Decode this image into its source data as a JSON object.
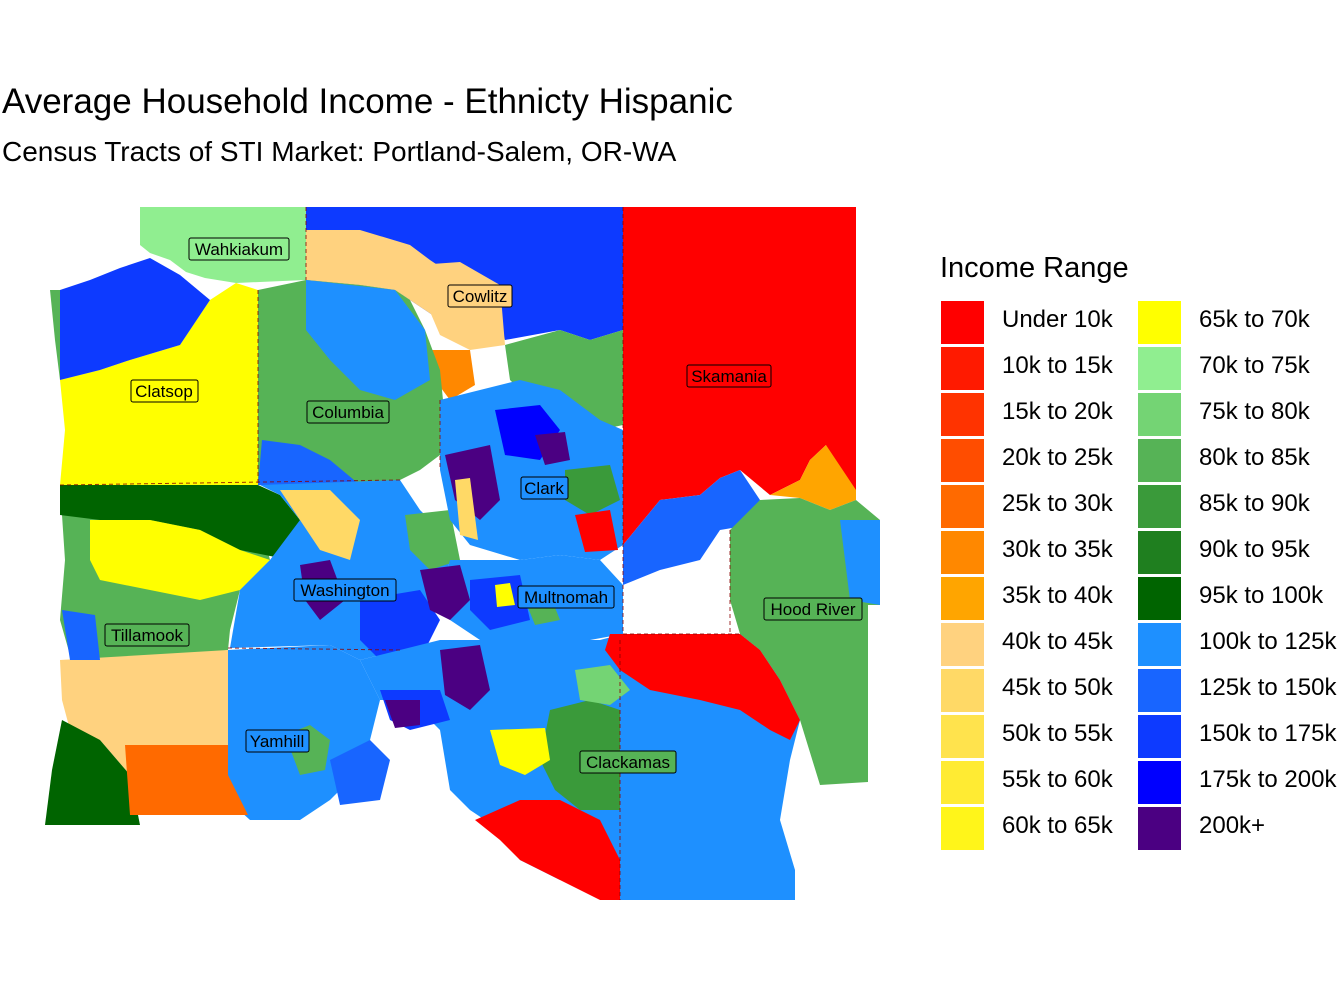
{
  "title": "Average Household Income - Ethnicty Hispanic",
  "subtitle": "Census Tracts of STI Market: Portland-Salem, OR-WA",
  "legend": {
    "title": "Income Range",
    "items": [
      {
        "label": "Under 10k",
        "color": "#FF0000"
      },
      {
        "label": "10k to 15k",
        "color": "#FF1A00"
      },
      {
        "label": "15k to 20k",
        "color": "#FF3300"
      },
      {
        "label": "20k to 25k",
        "color": "#FF4D00"
      },
      {
        "label": "25k to 30k",
        "color": "#FF6A00"
      },
      {
        "label": "30k to 35k",
        "color": "#FF8800"
      },
      {
        "label": "35k to 40k",
        "color": "#FFA500"
      },
      {
        "label": "40k to 45k",
        "color": "#FFD27F"
      },
      {
        "label": "45k to 50k",
        "color": "#FFD966"
      },
      {
        "label": "50k to 55k",
        "color": "#FFE34D"
      },
      {
        "label": "55k to 60k",
        "color": "#FFEB33"
      },
      {
        "label": "60k to 65k",
        "color": "#FFF51A"
      },
      {
        "label": "65k to 70k",
        "color": "#FFFF00"
      },
      {
        "label": "70k to 75k",
        "color": "#90EE90"
      },
      {
        "label": "75k to 80k",
        "color": "#74D474"
      },
      {
        "label": "80k to 85k",
        "color": "#56B356"
      },
      {
        "label": "85k to 90k",
        "color": "#3A9A3A"
      },
      {
        "label": "90k to 95k",
        "color": "#1F7F1F"
      },
      {
        "label": "95k to 100k",
        "color": "#006400"
      },
      {
        "label": "100k to 125k",
        "color": "#1E90FF"
      },
      {
        "label": "125k to 150k",
        "color": "#1865FF"
      },
      {
        "label": "150k to 175k",
        "color": "#0D3AFF"
      },
      {
        "label": "175k to 200k",
        "color": "#0000FF"
      },
      {
        "label": "200k+",
        "color": "#4B0082"
      }
    ]
  },
  "counties": [
    {
      "name": "Wahkiakum",
      "category": "70k to 75k"
    },
    {
      "name": "Cowlitz",
      "category": "40k to 45k"
    },
    {
      "name": "Clatsop",
      "category": "65k to 70k"
    },
    {
      "name": "Columbia",
      "category": "80k to 85k"
    },
    {
      "name": "Skamania",
      "category": "Under 10k"
    },
    {
      "name": "Clark",
      "category": "100k to 125k"
    },
    {
      "name": "Washington",
      "category": "100k to 125k"
    },
    {
      "name": "Multnomah",
      "category": "100k to 125k"
    },
    {
      "name": "Hood River",
      "category": "80k to 85k"
    },
    {
      "name": "Tillamook",
      "category": "80k to 85k"
    },
    {
      "name": "Yamhill",
      "category": "100k to 125k"
    },
    {
      "name": "Clackamas",
      "category": "100k to 125k"
    }
  ]
}
